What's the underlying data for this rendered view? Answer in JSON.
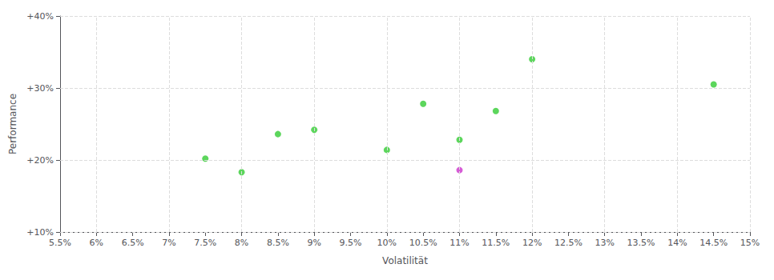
{
  "chart_data": {
    "type": "scatter",
    "xlabel": "Volatilität",
    "ylabel": "Performance",
    "xlim": [
      0.055,
      0.15
    ],
    "ylim": [
      0.1,
      0.4
    ],
    "xticks": [
      {
        "value": 0.055,
        "label": "5.5%"
      },
      {
        "value": 0.06,
        "label": "6%"
      },
      {
        "value": 0.065,
        "label": "6.5%"
      },
      {
        "value": 0.07,
        "label": "7%"
      },
      {
        "value": 0.075,
        "label": "7.5%"
      },
      {
        "value": 0.08,
        "label": "8%"
      },
      {
        "value": 0.085,
        "label": "8.5%"
      },
      {
        "value": 0.09,
        "label": "9%"
      },
      {
        "value": 0.095,
        "label": "9.5%"
      },
      {
        "value": 0.1,
        "label": "10%"
      },
      {
        "value": 0.105,
        "label": "10.5%"
      },
      {
        "value": 0.11,
        "label": "11%"
      },
      {
        "value": 0.115,
        "label": "11.5%"
      },
      {
        "value": 0.12,
        "label": "12%"
      },
      {
        "value": 0.125,
        "label": "12.5%"
      },
      {
        "value": 0.13,
        "label": "13%"
      },
      {
        "value": 0.135,
        "label": "13.5%"
      },
      {
        "value": 0.14,
        "label": "14%"
      },
      {
        "value": 0.145,
        "label": "14.5%"
      },
      {
        "value": 0.15,
        "label": "15%"
      }
    ],
    "yticks": [
      {
        "value": 0.1,
        "label": "+10%"
      },
      {
        "value": 0.2,
        "label": "+20%"
      },
      {
        "value": 0.3,
        "label": "+30%"
      },
      {
        "value": 0.4,
        "label": "+40%"
      }
    ],
    "grid": true,
    "series": [
      {
        "color": "#33cc33",
        "x": [
          0.075,
          0.08,
          0.085,
          0.09,
          0.1,
          0.105,
          0.11,
          0.115,
          0.12,
          0.145
        ],
        "values": [
          0.202,
          0.183,
          0.236,
          0.242,
          0.214,
          0.278,
          0.228,
          0.268,
          0.34,
          0.305
        ]
      },
      {
        "color": "#cc33cc",
        "x": [
          0.11
        ],
        "values": [
          0.186
        ]
      }
    ]
  }
}
